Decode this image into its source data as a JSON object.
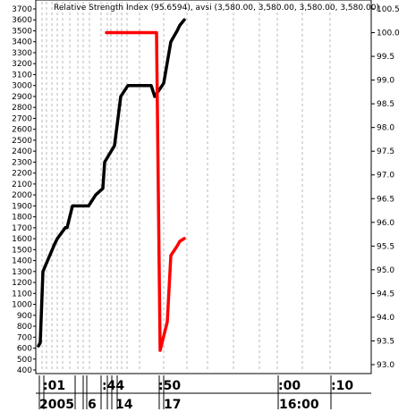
{
  "chart_data": {
    "type": "line",
    "title": "Relative Strength Index (95.6594), avsi (3,580.00, 3,580.00, 3,580.00, 3,580.00)",
    "left_axis": {
      "ylim": [
        380,
        3680
      ],
      "ticks": [
        400,
        500,
        600,
        700,
        800,
        900,
        1000,
        1100,
        1200,
        1300,
        1400,
        1500,
        1600,
        1700,
        1800,
        1900,
        2000,
        2100,
        2200,
        2300,
        2400,
        2500,
        2600,
        2700,
        2800,
        2900,
        3000,
        3100,
        3200,
        3300,
        3400,
        3500,
        3600,
        3700
      ]
    },
    "right_axis": {
      "ylim": [
        92.9,
        100.6
      ],
      "ticks": [
        "93.0",
        "93.5",
        "94.0",
        "94.5",
        "95.0",
        "95.5",
        "96.0",
        "96.5",
        "97.0",
        "97.5",
        "98.0",
        "98.5",
        "99.0",
        "99.5",
        "100.0",
        "100.5"
      ]
    },
    "x_axis": {
      "time_labels": [
        ":01",
        ":44",
        ":50",
        ":00",
        ":10"
      ],
      "date_labels": [
        "2005",
        "6",
        "14",
        "17",
        "16:00"
      ]
    },
    "series": [
      {
        "axis": "left",
        "color": "#000000",
        "x": [
          0,
          2,
          5,
          18,
          21,
          30,
          32,
          38,
          42,
          55,
          56,
          64,
          72,
          74,
          85,
          92,
          100,
          110,
          118,
          126,
          130,
          140,
          148,
          155,
          158,
          163
        ],
        "y": [
          620,
          650,
          1300,
          1550,
          1600,
          1700,
          1700,
          1900,
          1900,
          1900,
          1900,
          2000,
          2060,
          2300,
          2450,
          2900,
          3000,
          3000,
          3000,
          3000,
          2900,
          3020,
          3400,
          3500,
          3550,
          3600
        ]
      },
      {
        "axis": "right",
        "color": "#ff0000",
        "x": [
          76,
          132,
          136,
          144,
          148,
          155,
          158,
          163
        ],
        "y": [
          100.0,
          100.0,
          93.3,
          93.9,
          95.3,
          95.5,
          95.6,
          95.6594
        ]
      }
    ],
    "grid": "vertical dashed",
    "legend": "none"
  }
}
